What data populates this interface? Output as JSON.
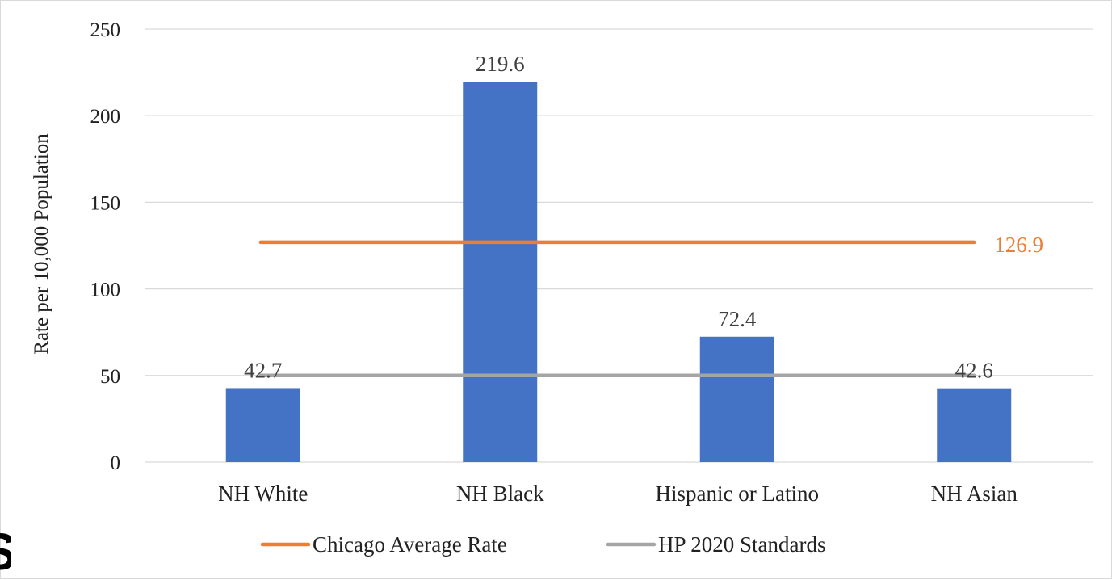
{
  "chart_data": {
    "type": "bar",
    "title": "",
    "xlabel": "",
    "ylabel": "Rate per 10,000 Population",
    "categories": [
      "NH White",
      "NH Black",
      "Hispanic or Latino",
      "NH Asian"
    ],
    "values": [
      42.7,
      219.6,
      72.4,
      42.6
    ],
    "data_labels": [
      "42.7",
      "219.6",
      "72.4",
      "42.6"
    ],
    "bar_color": "#4472c4",
    "ylim": [
      0,
      250
    ],
    "yticks": [
      0,
      50,
      100,
      150,
      200,
      250
    ],
    "ytick_labels": [
      "0",
      "50",
      "100",
      "150",
      "200",
      "250"
    ],
    "grid": true,
    "grid_color": "#d9d9d9",
    "reference_lines": [
      {
        "name": "Chicago Average Rate",
        "value": 126.9,
        "label": "126.9",
        "color": "#ed7d31",
        "show_label": true
      },
      {
        "name": "HP 2020 Standards",
        "value": 50,
        "label": "",
        "color": "#a5a5a5",
        "show_label": false
      }
    ],
    "legend": {
      "position": "bottom",
      "entries": [
        "Chicago Average Rate",
        "HP 2020 Standards"
      ]
    }
  },
  "overlay": {
    "corner_glyph": "S"
  }
}
